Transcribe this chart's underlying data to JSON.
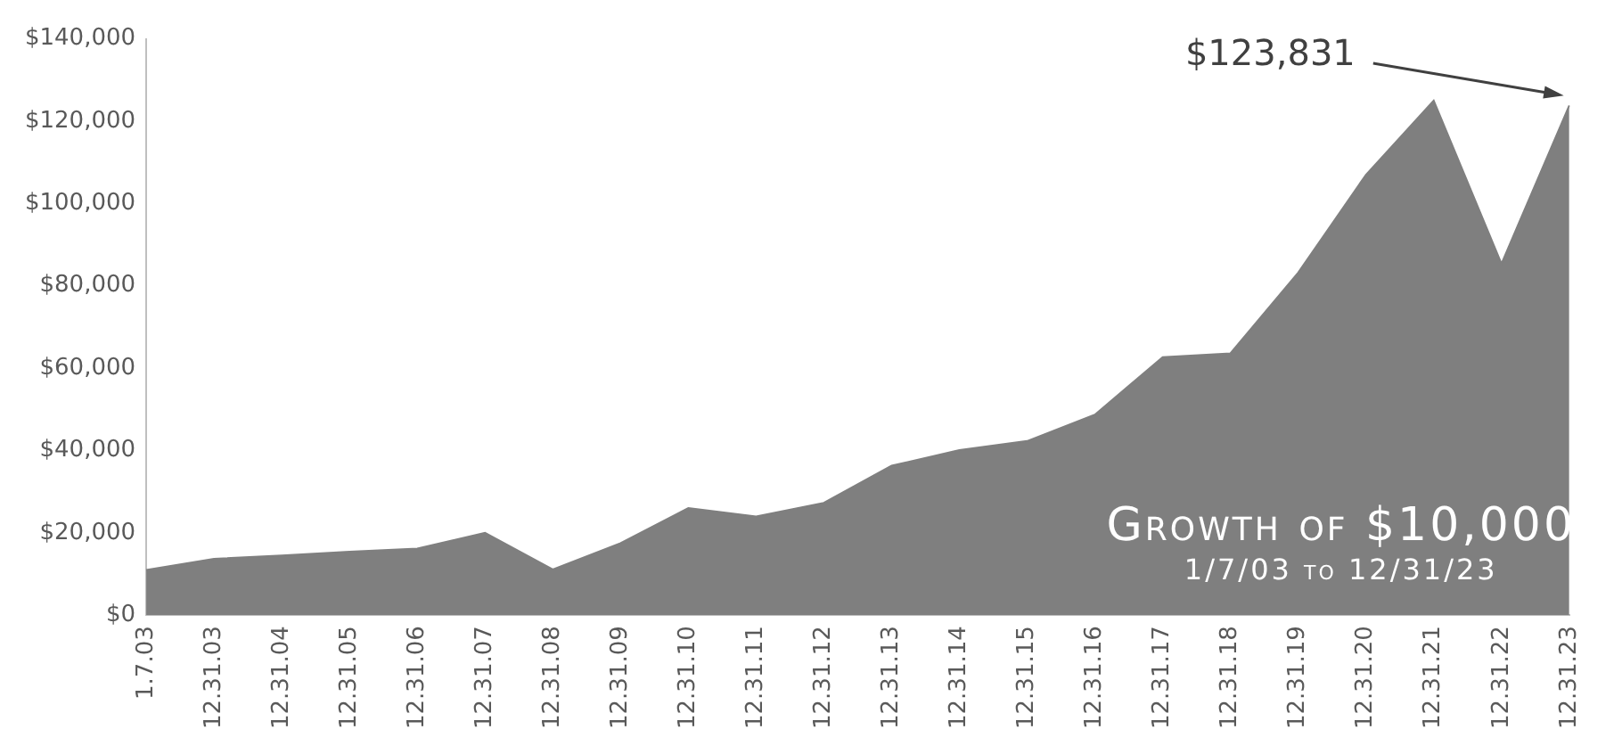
{
  "chart_data": {
    "type": "area",
    "title": "Growth of $10,000",
    "subtitle": "1/7/03 to 12/31/23",
    "categories": [
      "1.7.03",
      "12.31.03",
      "12.31.04",
      "12.31.05",
      "12.31.06",
      "12.31.07",
      "12.31.08",
      "12.31.09",
      "12.31.10",
      "12.31.11",
      "12.31.12",
      "12.31.13",
      "12.31.14",
      "12.31.15",
      "12.31.16",
      "12.31.17",
      "12.31.18",
      "12.31.19",
      "12.31.20",
      "12.31.21",
      "12.31.22",
      "12.31.23"
    ],
    "series": [
      {
        "color": "#7f7f7f",
        "values": [
          11000,
          13700,
          14500,
          15400,
          16200,
          20000,
          11100,
          17500,
          26000,
          24000,
          27300,
          36300,
          40100,
          42300,
          48700,
          62700,
          63600,
          83200,
          107000,
          125000,
          85400,
          123831
        ]
      }
    ],
    "ylim": [
      0,
      140000
    ],
    "yticks": [
      {
        "value": 0,
        "label": "$0"
      },
      {
        "value": 20000,
        "label": "$20,000"
      },
      {
        "value": 40000,
        "label": "$40,000"
      },
      {
        "value": 60000,
        "label": "$60,000"
      },
      {
        "value": 80000,
        "label": "$80,000"
      },
      {
        "value": 100000,
        "label": "$100,000"
      },
      {
        "value": 120000,
        "label": "$120,000"
      },
      {
        "value": 140000,
        "label": "$140,000"
      }
    ],
    "annotations": [
      {
        "text": "$123,831",
        "x": "12.31.23",
        "y": 123831
      }
    ],
    "grid": false,
    "legend": false
  }
}
